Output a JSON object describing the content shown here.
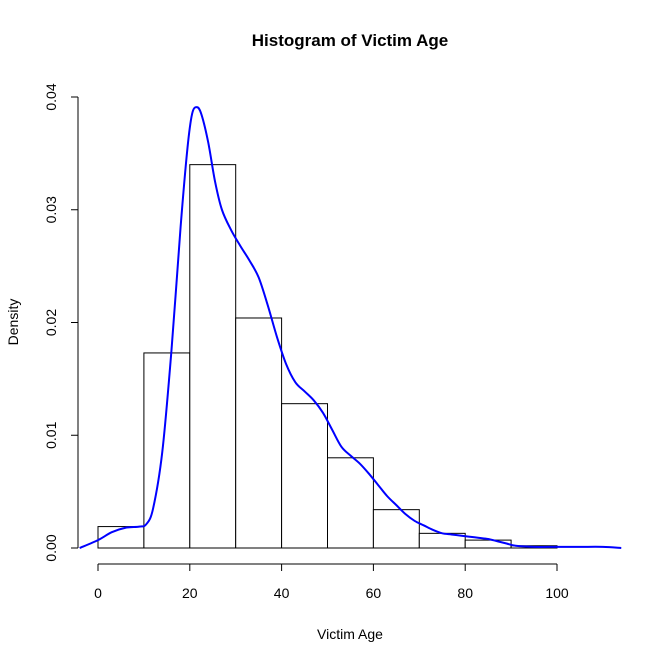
{
  "chart_data": {
    "type": "bar",
    "title": "Histogram of Victim Age",
    "xlabel": "Victim Age",
    "ylabel": "Density",
    "xlim": [
      0,
      110
    ],
    "ylim": [
      0,
      0.04
    ],
    "x_ticks": [
      "0",
      "20",
      "40",
      "60",
      "80",
      "100"
    ],
    "y_ticks": [
      "0.00",
      "0.01",
      "0.02",
      "0.03",
      "0.04"
    ],
    "bins": [
      {
        "from": 0,
        "to": 10,
        "density": 0.0019
      },
      {
        "from": 10,
        "to": 20,
        "density": 0.0173
      },
      {
        "from": 20,
        "to": 30,
        "density": 0.034
      },
      {
        "from": 30,
        "to": 40,
        "density": 0.0204
      },
      {
        "from": 40,
        "to": 50,
        "density": 0.0128
      },
      {
        "from": 50,
        "to": 60,
        "density": 0.008
      },
      {
        "from": 60,
        "to": 70,
        "density": 0.0034
      },
      {
        "from": 70,
        "to": 80,
        "density": 0.0013
      },
      {
        "from": 80,
        "to": 90,
        "density": 0.0007
      },
      {
        "from": 90,
        "to": 100,
        "density": 0.0002
      }
    ],
    "series": [
      {
        "type": "line",
        "x": [
          -4,
          0,
          3,
          6,
          9,
          10.5,
          12,
          14,
          16,
          18,
          19.5,
          20.5,
          21.5,
          22.5,
          24,
          25.5,
          27,
          29,
          31,
          33,
          35,
          37,
          39,
          41,
          43,
          45,
          47,
          49,
          51,
          53,
          55,
          57,
          59,
          61,
          63,
          65,
          67,
          69,
          71,
          73,
          75,
          77,
          79,
          81,
          83,
          85,
          87,
          89,
          91,
          95,
          100,
          105,
          110,
          114
        ],
        "y": [
          0.0,
          0.0007,
          0.0014,
          0.0018,
          0.0019,
          0.0021,
          0.0035,
          0.0085,
          0.0175,
          0.0285,
          0.0355,
          0.0385,
          0.0391,
          0.0385,
          0.036,
          0.0325,
          0.03,
          0.0282,
          0.0268,
          0.0255,
          0.024,
          0.0215,
          0.0187,
          0.0163,
          0.0147,
          0.0139,
          0.0131,
          0.012,
          0.0105,
          0.009,
          0.0082,
          0.0075,
          0.0066,
          0.0056,
          0.0046,
          0.0038,
          0.003,
          0.0024,
          0.002,
          0.0016,
          0.0013,
          0.0012,
          0.0011,
          0.001,
          0.0009,
          0.0008,
          0.0006,
          0.0004,
          0.0002,
          0.0001,
          0.0001,
          0.0001,
          0.0001,
          0.0
        ]
      }
    ],
    "colors": {
      "bar_fill": "#ffffff",
      "bar_stroke": "#000000",
      "density_line": "#0000ff"
    }
  }
}
